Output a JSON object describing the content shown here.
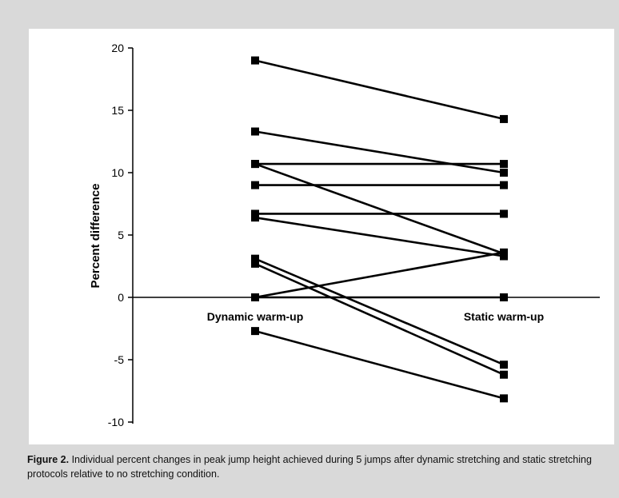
{
  "figure": {
    "caption_label": "Figure 2.",
    "caption_text": " Individual percent changes in peak jump height achieved during 5 jumps after dynamic stretching and static stretching protocols relative to no stretching condition."
  },
  "chart_data": {
    "type": "line",
    "categories": [
      "Dynamic warm-up",
      "Static warm-up"
    ],
    "ylabel": "Percent difference",
    "ylim": [
      -10,
      20
    ],
    "yticks": [
      -10,
      -5,
      0,
      5,
      10,
      15,
      20
    ],
    "grid": false,
    "legend": "none",
    "series": [
      {
        "values": [
          19.0,
          14.3
        ]
      },
      {
        "values": [
          13.3,
          10.0
        ]
      },
      {
        "values": [
          10.7,
          10.7
        ]
      },
      {
        "values": [
          10.7,
          3.5
        ]
      },
      {
        "values": [
          9.0,
          9.0
        ]
      },
      {
        "values": [
          6.7,
          6.7
        ]
      },
      {
        "values": [
          6.4,
          3.3
        ]
      },
      {
        "values": [
          3.1,
          -5.4
        ]
      },
      {
        "values": [
          2.7,
          -6.2
        ]
      },
      {
        "values": [
          0.0,
          3.6
        ]
      },
      {
        "values": [
          0.0,
          0.0
        ]
      },
      {
        "values": [
          -2.7,
          -8.1
        ]
      }
    ],
    "colors": {
      "line": "#000000",
      "marker": "#000000"
    }
  }
}
